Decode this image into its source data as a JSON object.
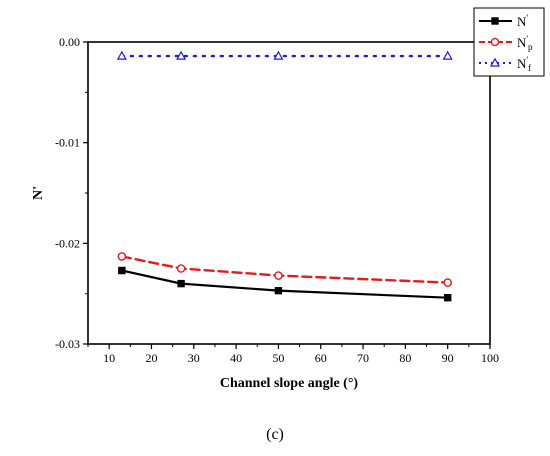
{
  "chart_data": {
    "type": "line",
    "xlabel": "Channel slope angle (°)",
    "ylabel": "N'",
    "xlim": [
      5,
      100
    ],
    "ylim": [
      -0.03,
      0.0
    ],
    "x_ticks": [
      10,
      20,
      30,
      40,
      50,
      60,
      70,
      80,
      90,
      100
    ],
    "y_ticks": [
      0.0,
      -0.01,
      -0.02,
      -0.03
    ],
    "y_tick_labels": [
      "0.00",
      "-0.01",
      "-0.02",
      "-0.03"
    ],
    "legend_position": "top-right",
    "x": [
      13,
      27,
      50,
      90
    ],
    "series": [
      {
        "name": "N'",
        "legend_main": "N",
        "legend_sub": "",
        "color": "#000000",
        "dash": "solid",
        "marker": "square-filled",
        "values": [
          -0.0227,
          -0.024,
          -0.0247,
          -0.0254
        ]
      },
      {
        "name": "N'p",
        "legend_main": "N",
        "legend_sub": "p",
        "color": "#e8191e",
        "dash": "dashed",
        "marker": "circle-open",
        "values": [
          -0.0213,
          -0.0225,
          -0.0232,
          -0.0239
        ]
      },
      {
        "name": "N'f",
        "legend_main": "N",
        "legend_sub": "f",
        "color": "#1c1cd6",
        "dash": "dotted",
        "marker": "triangle-open",
        "values": [
          -0.0014,
          -0.0014,
          -0.0014,
          -0.0014
        ]
      }
    ]
  },
  "caption": "(c)"
}
